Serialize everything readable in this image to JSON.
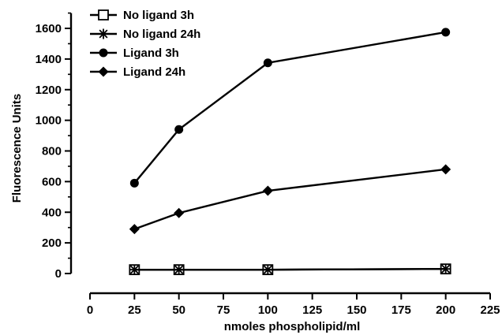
{
  "chart_data": {
    "type": "line",
    "xlabel": "nmoles phospholipid/ml",
    "ylabel": "Fluorescence Units",
    "xlim": [
      0,
      225
    ],
    "ylim": [
      0,
      1700
    ],
    "xticks": [
      0,
      25,
      50,
      75,
      100,
      125,
      150,
      175,
      200,
      225
    ],
    "yticks": [
      0,
      200,
      400,
      600,
      800,
      1000,
      1200,
      1400,
      1600
    ],
    "legend_position": "top-left",
    "grid": false,
    "series": [
      {
        "name": "No ligand 3h",
        "marker": "square-open",
        "x": [
          25,
          50,
          100,
          200
        ],
        "y": [
          25,
          25,
          25,
          30
        ]
      },
      {
        "name": "No ligand 24h",
        "marker": "asterisk",
        "x": [
          25,
          50,
          100,
          200
        ],
        "y": [
          25,
          25,
          25,
          30
        ]
      },
      {
        "name": "Ligand 3h",
        "marker": "circle-filled",
        "x": [
          25,
          50,
          100,
          200
        ],
        "y": [
          590,
          940,
          1375,
          1575
        ]
      },
      {
        "name": "Ligand 24h",
        "marker": "diamond-filled",
        "x": [
          25,
          50,
          100,
          200
        ],
        "y": [
          290,
          395,
          540,
          680
        ]
      }
    ]
  }
}
